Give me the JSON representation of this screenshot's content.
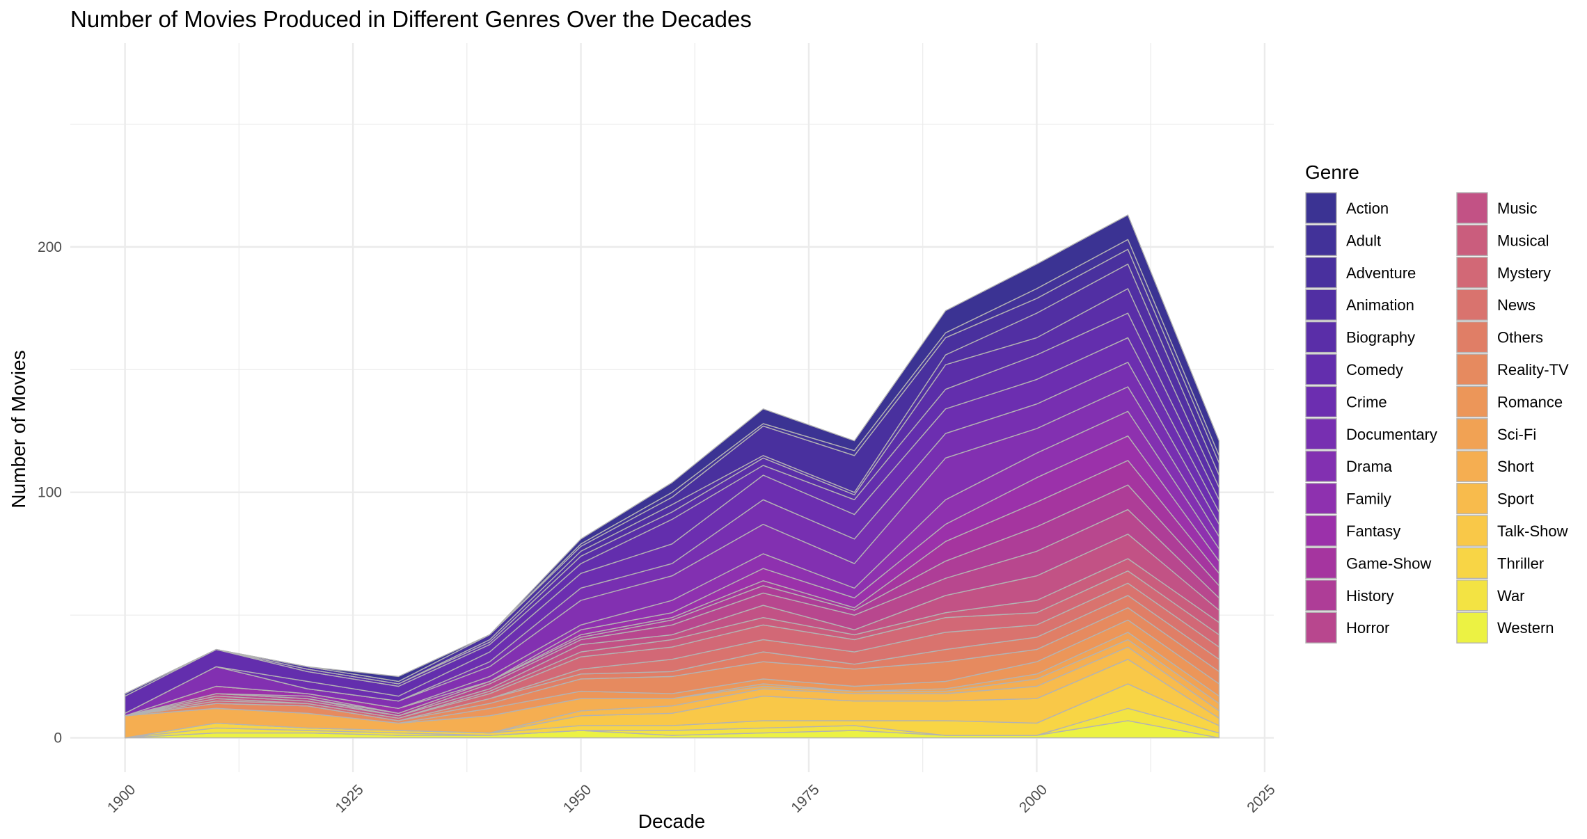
{
  "chart_data": {
    "type": "area",
    "stacked": true,
    "title": "Number of Movies Produced in Different Genres Over the Decades",
    "xlabel": "Decade",
    "ylabel": "Number of Movies",
    "xlim": [
      1894,
      2026
    ],
    "ylim": [
      -14,
      283
    ],
    "x_ticks": [
      1900,
      1925,
      1950,
      1975,
      2000,
      2025
    ],
    "y_ticks": [
      0,
      100,
      200
    ],
    "x_tick_rotation": 45,
    "grid": true,
    "legend_title": "Genre",
    "legend_position": "right",
    "x": [
      1900,
      1910,
      1920,
      1930,
      1940,
      1950,
      1960,
      1970,
      1980,
      1990,
      2000,
      2010,
      2020
    ],
    "series": [
      {
        "name": "Action",
        "values": [
          0,
          0,
          0,
          2,
          0,
          2,
          4,
          6,
          4,
          9,
          10,
          10,
          6
        ]
      },
      {
        "name": "Adult",
        "values": [
          0,
          0,
          0,
          0,
          0,
          1,
          2,
          1,
          2,
          2,
          4,
          4,
          3
        ]
      },
      {
        "name": "Adventure",
        "values": [
          1,
          0,
          1,
          1,
          2,
          2,
          3,
          12,
          15,
          7,
          6,
          6,
          5
        ]
      },
      {
        "name": "Animation",
        "values": [
          0,
          0,
          0,
          0,
          1,
          2,
          3,
          1,
          1,
          4,
          10,
          10,
          5
        ]
      },
      {
        "name": "Biography",
        "values": [
          0,
          0,
          1,
          1,
          1,
          3,
          3,
          3,
          2,
          10,
          7,
          10,
          5
        ]
      },
      {
        "name": "Comedy",
        "values": [
          7,
          7,
          4,
          4,
          3,
          4,
          10,
          4,
          6,
          8,
          10,
          10,
          5
        ]
      },
      {
        "name": "Crime",
        "values": [
          0,
          0,
          3,
          2,
          4,
          6,
          8,
          10,
          10,
          10,
          10,
          10,
          5
        ]
      },
      {
        "name": "Documentary",
        "values": [
          0,
          0,
          0,
          0,
          2,
          5,
          5,
          10,
          10,
          10,
          10,
          10,
          5
        ]
      },
      {
        "name": "Drama",
        "values": [
          1,
          8,
          2,
          3,
          4,
          10,
          10,
          12,
          10,
          17,
          10,
          10,
          5
        ]
      },
      {
        "name": "Family",
        "values": [
          0,
          0,
          0,
          0,
          2,
          2,
          5,
          6,
          4,
          10,
          10,
          10,
          5
        ]
      },
      {
        "name": "Fantasy",
        "values": [
          0,
          3,
          1,
          2,
          0,
          2,
          2,
          5,
          4,
          7,
          10,
          10,
          5
        ]
      },
      {
        "name": "Game-Show",
        "values": [
          0,
          0,
          1,
          0,
          0,
          1,
          1,
          2,
          1,
          8,
          10,
          10,
          5
        ]
      },
      {
        "name": "History",
        "values": [
          0,
          0,
          0,
          1,
          1,
          1,
          2,
          3,
          2,
          7,
          10,
          10,
          5
        ]
      },
      {
        "name": "Horror",
        "values": [
          0,
          1,
          1,
          0,
          2,
          2,
          4,
          5,
          6,
          7,
          10,
          10,
          5
        ]
      },
      {
        "name": "Music",
        "values": [
          0,
          1,
          1,
          1,
          1,
          3,
          2,
          5,
          2,
          7,
          10,
          10,
          5
        ]
      },
      {
        "name": "Musical",
        "values": [
          0,
          1,
          0,
          0,
          1,
          2,
          3,
          3,
          2,
          2,
          5,
          5,
          5
        ]
      },
      {
        "name": "Mystery",
        "values": [
          0,
          1,
          1,
          1,
          2,
          5,
          5,
          6,
          5,
          6,
          5,
          5,
          5
        ]
      },
      {
        "name": "News",
        "values": [
          0,
          0,
          0,
          0,
          0,
          2,
          5,
          5,
          5,
          7,
          5,
          5,
          5
        ]
      },
      {
        "name": "Others",
        "values": [
          0,
          0,
          0,
          0,
          2,
          2,
          2,
          4,
          2,
          5,
          5,
          5,
          5
        ]
      },
      {
        "name": "Reality-TV",
        "values": [
          0,
          2,
          3,
          1,
          2,
          5,
          7,
          7,
          7,
          8,
          5,
          5,
          5
        ]
      },
      {
        "name": "Romance",
        "values": [
          0,
          0,
          0,
          0,
          3,
          3,
          2,
          2,
          2,
          3,
          5,
          5,
          5
        ]
      },
      {
        "name": "Sci-Fi",
        "values": [
          0,
          0,
          0,
          0,
          0,
          0,
          0,
          1,
          0,
          1,
          2,
          3,
          3
        ]
      },
      {
        "name": "Short",
        "values": [
          9,
          6,
          6,
          3,
          7,
          5,
          3,
          1,
          1,
          1,
          3,
          3,
          3
        ]
      },
      {
        "name": "Sport",
        "values": [
          0,
          0,
          0,
          0,
          0,
          2,
          3,
          3,
          3,
          3,
          5,
          5,
          3
        ]
      },
      {
        "name": "Talk-Show",
        "values": [
          0,
          0,
          0,
          0,
          0,
          4,
          5,
          10,
          8,
          8,
          10,
          10,
          3
        ]
      },
      {
        "name": "Thriller",
        "values": [
          0,
          2,
          1,
          1,
          1,
          2,
          2,
          3,
          2,
          6,
          5,
          10,
          3
        ]
      },
      {
        "name": "War",
        "values": [
          0,
          2,
          1,
          1,
          0,
          0,
          2,
          2,
          2,
          0,
          0,
          5,
          2
        ]
      },
      {
        "name": "Western",
        "values": [
          0,
          2,
          2,
          1,
          1,
          3,
          1,
          2,
          3,
          1,
          1,
          7,
          0
        ]
      }
    ],
    "colors": [
      "#3b3393",
      "#423299",
      "#49309e",
      "#512fa3",
      "#5a2ea8",
      "#632ead",
      "#6c2eb0",
      "#772fb1",
      "#8230b1",
      "#8e31af",
      "#9b31aa",
      "#a5359f",
      "#ae3d97",
      "#b8478e",
      "#c25285",
      "#ca5d7d",
      "#d26876",
      "#d9736e",
      "#e07e66",
      "#e68a5f",
      "#ec9659",
      "#f1a254",
      "#f5ae51",
      "#f8bb4c",
      "#f9c848",
      "#f8d545",
      "#f3e343",
      "#ecf243"
    ],
    "line_color": "#b3b3b3"
  }
}
